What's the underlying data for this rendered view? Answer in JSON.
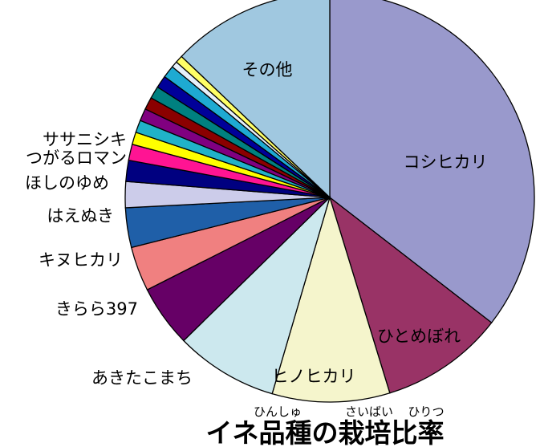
{
  "chart_data": {
    "type": "pie",
    "title": "イネ品種の栽培比率",
    "title_ruby": [
      "ひんしゅ",
      "さいばい",
      "ひりつ"
    ],
    "start_angle_deg": 0,
    "direction": "clockwise",
    "slices": [
      {
        "name": "コシヒカリ",
        "value": 36.3,
        "color": "#9999cc"
      },
      {
        "name": "ひとめぼれ",
        "value": 10.0,
        "color": "#993366"
      },
      {
        "name": "ヒノヒカリ",
        "value": 9.5,
        "color": "#f5f5cc"
      },
      {
        "name": "あきたこまち",
        "value": 8.3,
        "color": "#cce8ee"
      },
      {
        "name": "きらら397",
        "value": 5.0,
        "color": "#660066"
      },
      {
        "name": "キヌヒカリ",
        "value": 3.6,
        "color": "#f08080"
      },
      {
        "name": "はえぬき",
        "value": 3.2,
        "color": "#1f5fa8"
      },
      {
        "name": "ほしのゆめ",
        "value": 2.1,
        "color": "#ccccea"
      },
      {
        "name": "つがるロマン",
        "value": 1.7,
        "color": "#000080"
      },
      {
        "name": "ササニシキ",
        "value": 1.3,
        "color": "#ff1493"
      },
      {
        "name": "",
        "value": 1.0,
        "color": "#ffff00"
      },
      {
        "name": "",
        "value": 1.0,
        "color": "#20b2c8"
      },
      {
        "name": "",
        "value": 1.0,
        "color": "#800080"
      },
      {
        "name": "",
        "value": 1.0,
        "color": "#8b0000"
      },
      {
        "name": "",
        "value": 1.0,
        "color": "#008080"
      },
      {
        "name": "",
        "value": 1.0,
        "color": "#000099"
      },
      {
        "name": "",
        "value": 1.0,
        "color": "#1eaad2"
      },
      {
        "name": "",
        "value": 0.5,
        "color": "#e6f0fa"
      },
      {
        "name": "",
        "value": 0.6,
        "color": "#ffff66"
      },
      {
        "name": "その他",
        "value": 13.2,
        "color": "#a0c8e0"
      }
    ]
  }
}
